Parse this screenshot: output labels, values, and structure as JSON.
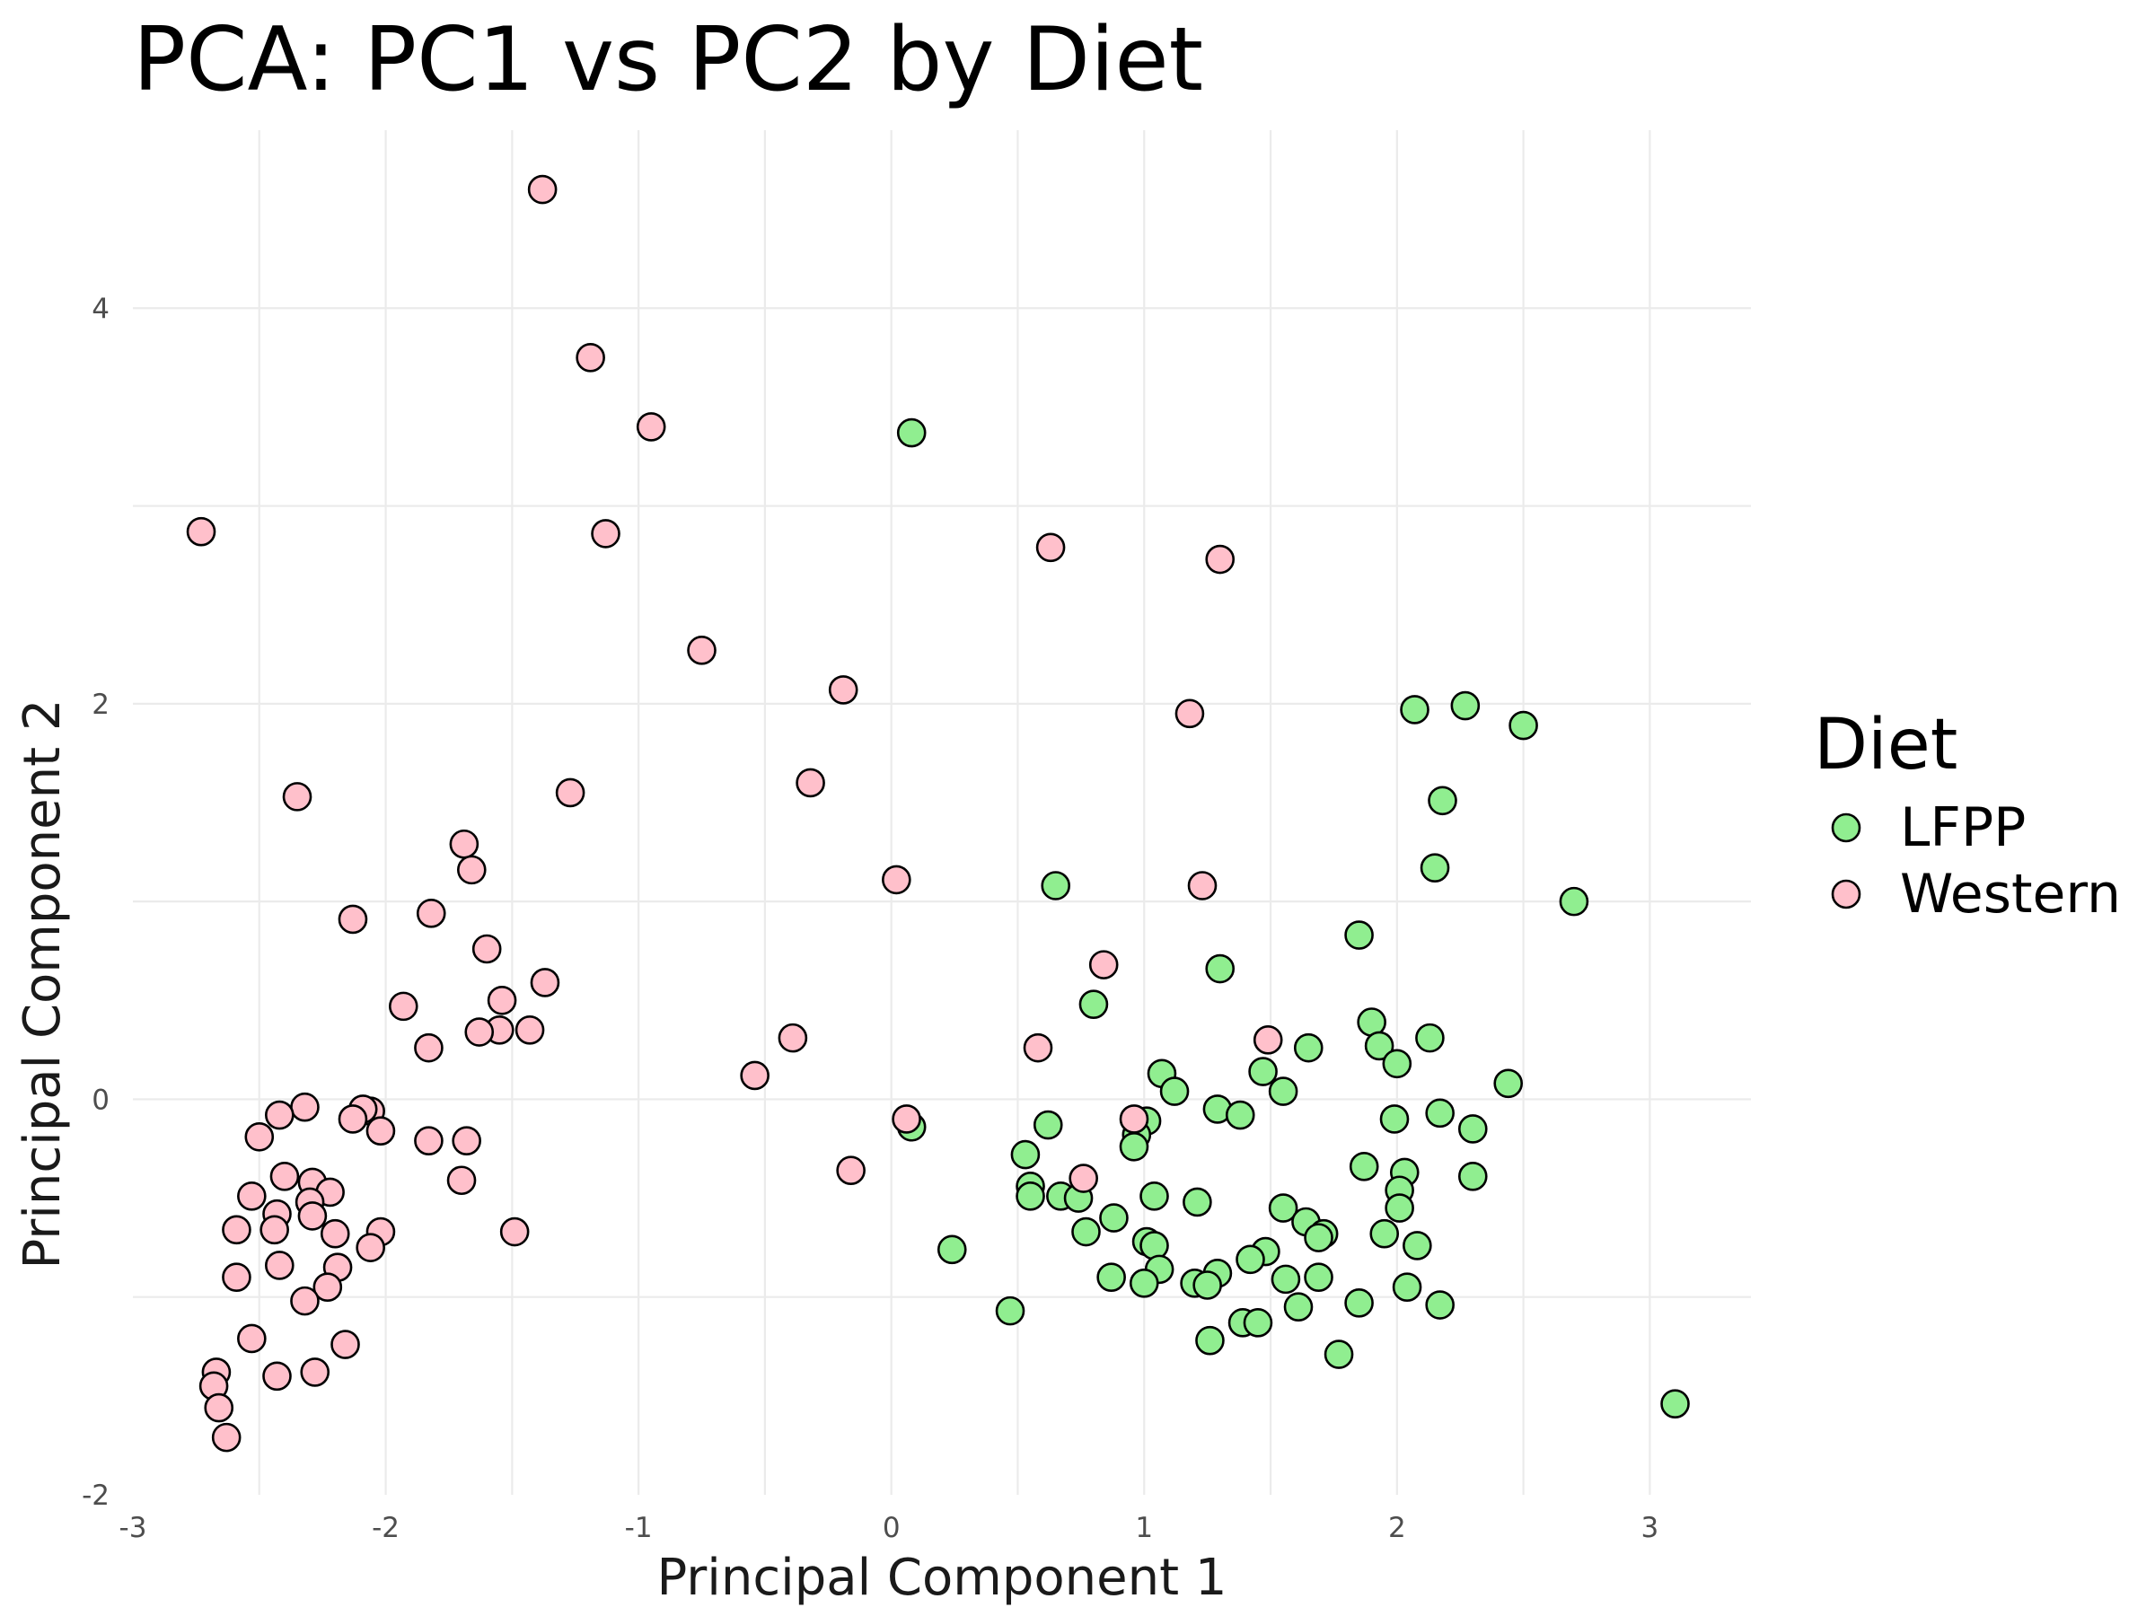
{
  "chart_data": {
    "type": "scatter",
    "title": "PCA: PC1 vs PC2 by Diet",
    "xlabel": "Principal Component 1",
    "ylabel": "Principal Component 2",
    "xlim": [
      -3,
      3.4
    ],
    "ylim": [
      -2,
      4.9
    ],
    "x_ticks": [
      -3,
      -2,
      -1,
      0,
      1,
      2,
      3
    ],
    "y_ticks": [
      -2,
      0,
      2,
      4
    ],
    "x_tick_labels": [
      "-3",
      "-2",
      "-1",
      "0",
      "1",
      "2",
      "3"
    ],
    "y_tick_labels": [
      "-2",
      "0",
      "2",
      "4"
    ],
    "grid": true,
    "legend": {
      "title": "Diet",
      "position": "right",
      "entries": [
        {
          "label": "LFPP",
          "color": "#90ee90"
        },
        {
          "label": "Western",
          "color": "#ffc0cb"
        }
      ]
    },
    "series": [
      {
        "name": "LFPP",
        "color": "#90ee90",
        "points": [
          [
            0.08,
            3.37
          ],
          [
            2.07,
            1.97
          ],
          [
            2.27,
            1.99
          ],
          [
            2.5,
            1.89
          ],
          [
            2.18,
            1.51
          ],
          [
            2.15,
            1.17
          ],
          [
            2.7,
            1.0
          ],
          [
            0.65,
            1.08
          ],
          [
            1.85,
            0.83
          ],
          [
            1.3,
            0.66
          ],
          [
            0.8,
            0.48
          ],
          [
            1.9,
            0.39
          ],
          [
            1.93,
            0.27
          ],
          [
            2.13,
            0.31
          ],
          [
            1.65,
            0.26
          ],
          [
            2.0,
            0.18
          ],
          [
            2.44,
            0.08
          ],
          [
            1.47,
            0.14
          ],
          [
            1.07,
            0.13
          ],
          [
            1.12,
            0.04
          ],
          [
            1.55,
            0.04
          ],
          [
            1.29,
            -0.05
          ],
          [
            1.38,
            -0.08
          ],
          [
            1.99,
            -0.1
          ],
          [
            2.17,
            -0.07
          ],
          [
            0.62,
            -0.13
          ],
          [
            0.08,
            -0.14
          ],
          [
            1.01,
            -0.11
          ],
          [
            0.97,
            -0.18
          ],
          [
            2.3,
            -0.15
          ],
          [
            0.96,
            -0.24
          ],
          [
            0.53,
            -0.28
          ],
          [
            1.87,
            -0.34
          ],
          [
            2.03,
            -0.37
          ],
          [
            2.3,
            -0.39
          ],
          [
            0.55,
            -0.44
          ],
          [
            2.01,
            -0.46
          ],
          [
            0.55,
            -0.49
          ],
          [
            0.67,
            -0.49
          ],
          [
            0.74,
            -0.5
          ],
          [
            1.04,
            -0.49
          ],
          [
            1.21,
            -0.52
          ],
          [
            1.55,
            -0.55
          ],
          [
            2.01,
            -0.55
          ],
          [
            1.64,
            -0.62
          ],
          [
            0.88,
            -0.6
          ],
          [
            0.77,
            -0.67
          ],
          [
            1.71,
            -0.68
          ],
          [
            1.95,
            -0.68
          ],
          [
            1.69,
            -0.7
          ],
          [
            1.01,
            -0.72
          ],
          [
            1.04,
            -0.74
          ],
          [
            2.08,
            -0.74
          ],
          [
            0.24,
            -0.76
          ],
          [
            1.48,
            -0.77
          ],
          [
            1.42,
            -0.81
          ],
          [
            1.06,
            -0.86
          ],
          [
            1.29,
            -0.88
          ],
          [
            1.56,
            -0.91
          ],
          [
            1.69,
            -0.9
          ],
          [
            0.87,
            -0.9
          ],
          [
            1.0,
            -0.93
          ],
          [
            1.2,
            -0.93
          ],
          [
            1.25,
            -0.94
          ],
          [
            2.04,
            -0.95
          ],
          [
            1.85,
            -1.03
          ],
          [
            2.17,
            -1.04
          ],
          [
            1.61,
            -1.05
          ],
          [
            0.47,
            -1.07
          ],
          [
            1.39,
            -1.13
          ],
          [
            1.45,
            -1.13
          ],
          [
            1.26,
            -1.22
          ],
          [
            1.77,
            -1.29
          ],
          [
            3.1,
            -1.54
          ]
        ]
      },
      {
        "name": "Western",
        "color": "#ffc0cb",
        "points": [
          [
            -1.38,
            4.6
          ],
          [
            -1.19,
            3.75
          ],
          [
            -0.95,
            3.4
          ],
          [
            -2.73,
            2.87
          ],
          [
            -1.13,
            2.86
          ],
          [
            0.63,
            2.79
          ],
          [
            1.3,
            2.73
          ],
          [
            -0.75,
            2.27
          ],
          [
            -0.19,
            2.07
          ],
          [
            1.18,
            1.95
          ],
          [
            -0.32,
            1.6
          ],
          [
            -2.35,
            1.53
          ],
          [
            -1.27,
            1.55
          ],
          [
            -1.69,
            1.29
          ],
          [
            -1.66,
            1.16
          ],
          [
            0.02,
            1.11
          ],
          [
            1.23,
            1.08
          ],
          [
            -2.13,
            0.91
          ],
          [
            -1.82,
            0.94
          ],
          [
            -1.6,
            0.76
          ],
          [
            0.84,
            0.68
          ],
          [
            -1.37,
            0.59
          ],
          [
            -1.54,
            0.5
          ],
          [
            -1.93,
            0.47
          ],
          [
            -1.55,
            0.35
          ],
          [
            -1.63,
            0.34
          ],
          [
            -1.43,
            0.35
          ],
          [
            -0.39,
            0.31
          ],
          [
            1.49,
            0.3
          ],
          [
            -1.83,
            0.26
          ],
          [
            0.58,
            0.26
          ],
          [
            -0.54,
            0.12
          ],
          [
            -2.32,
            -0.04
          ],
          [
            -2.06,
            -0.06
          ],
          [
            -2.09,
            -0.05
          ],
          [
            -2.42,
            -0.08
          ],
          [
            -2.13,
            -0.1
          ],
          [
            0.06,
            -0.1
          ],
          [
            0.96,
            -0.1
          ],
          [
            -2.02,
            -0.16
          ],
          [
            -2.5,
            -0.19
          ],
          [
            -1.83,
            -0.21
          ],
          [
            -1.68,
            -0.21
          ],
          [
            -0.16,
            -0.36
          ],
          [
            0.76,
            -0.4
          ],
          [
            -1.7,
            -0.41
          ],
          [
            -2.4,
            -0.39
          ],
          [
            -2.29,
            -0.42
          ],
          [
            -2.22,
            -0.47
          ],
          [
            -2.53,
            -0.49
          ],
          [
            -2.3,
            -0.52
          ],
          [
            -2.43,
            -0.58
          ],
          [
            -2.29,
            -0.59
          ],
          [
            -2.59,
            -0.66
          ],
          [
            -2.44,
            -0.66
          ],
          [
            -2.2,
            -0.68
          ],
          [
            -2.02,
            -0.67
          ],
          [
            -1.49,
            -0.67
          ],
          [
            -2.06,
            -0.75
          ],
          [
            -2.42,
            -0.84
          ],
          [
            -2.19,
            -0.85
          ],
          [
            -2.59,
            -0.9
          ],
          [
            -2.23,
            -0.95
          ],
          [
            -2.32,
            -1.02
          ],
          [
            -2.53,
            -1.21
          ],
          [
            -2.16,
            -1.24
          ],
          [
            -2.67,
            -1.38
          ],
          [
            -2.28,
            -1.38
          ],
          [
            -2.43,
            -1.4
          ],
          [
            -2.68,
            -1.45
          ],
          [
            -2.66,
            -1.56
          ],
          [
            -2.63,
            -1.71
          ]
        ]
      }
    ]
  }
}
